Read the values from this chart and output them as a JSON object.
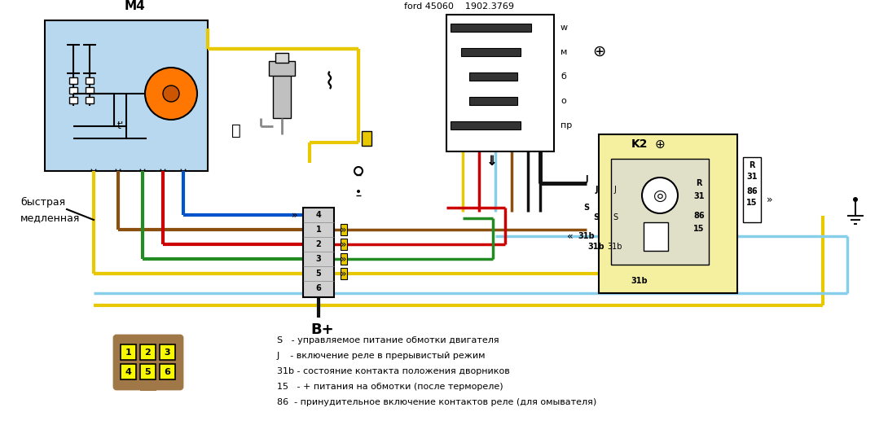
{
  "bg_color": "#ffffff",
  "title_ford": "ford 45060    1902.3769",
  "title_m4": "M4",
  "title_k2": "K2",
  "label_bystray": "быстрая",
  "label_medlennaya": "медленная",
  "label_bplus": "B+",
  "legend_lines": [
    "S   - управляемое питание обмотки двигателя",
    "J    - включение реле в прерывистый режим",
    "31b - состояние контакта положения дворников",
    "15   - + питания на обмотки (после термореле)",
    "86  - принудительное включение контактов реле (для омывателя)"
  ],
  "switch_labels": [
    "w",
    "м",
    "б",
    "о",
    "пр"
  ],
  "wire_colors": {
    "yellow": "#E8C800",
    "black": "#111111",
    "red": "#CC0000",
    "green": "#228B22",
    "blue": "#0055CC",
    "brown": "#8B5010",
    "light_blue": "#87CEEB",
    "gray": "#888888",
    "orange": "#FF7700"
  },
  "motor_box_color": "#B8D8F0",
  "relay_box_color": "#F5F0A0",
  "connector_box_color": "#A07848",
  "connector_fill": "#F8F800"
}
